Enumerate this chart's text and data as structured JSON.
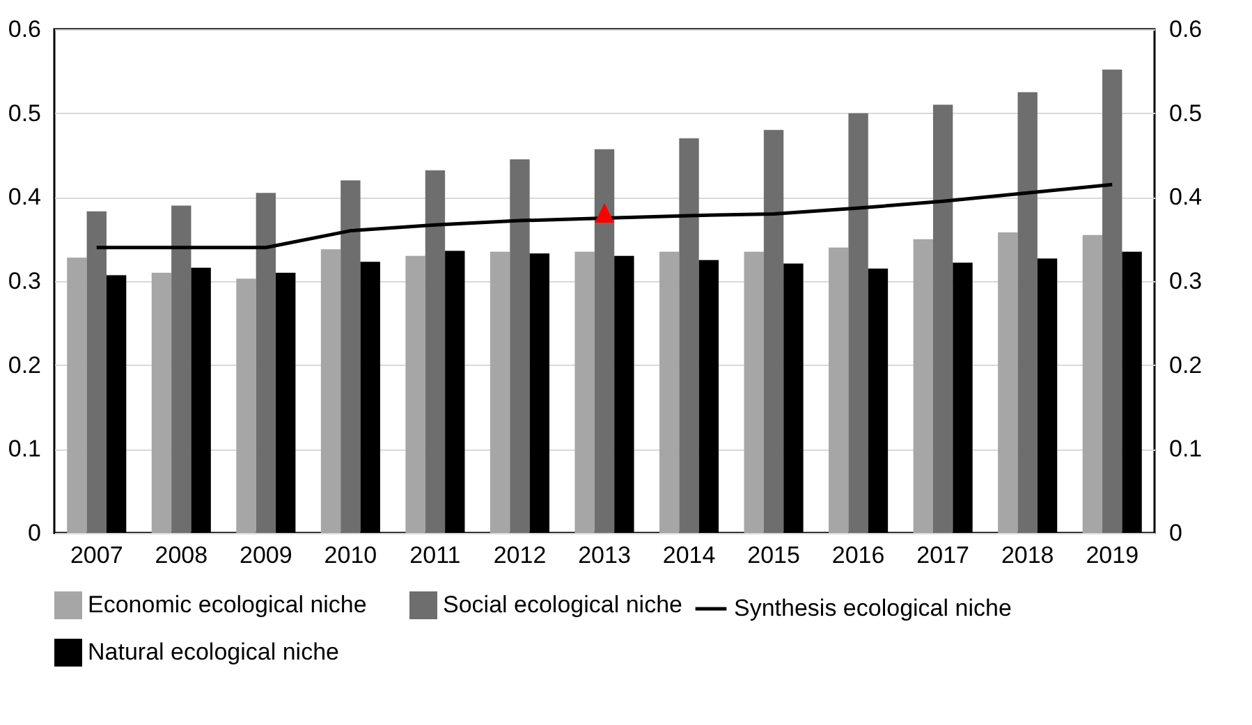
{
  "chart_data": {
    "type": "bar",
    "categories": [
      "2007",
      "2008",
      "2009",
      "2010",
      "2011",
      "2012",
      "2013",
      "2014",
      "2015",
      "2016",
      "2017",
      "2018",
      "2019"
    ],
    "series": [
      {
        "name": "Economic ecological niche",
        "color": "#a6a6a6",
        "values": [
          0.328,
          0.31,
          0.303,
          0.338,
          0.33,
          0.335,
          0.335,
          0.335,
          0.335,
          0.34,
          0.35,
          0.358,
          0.355
        ]
      },
      {
        "name": "Social ecological niche",
        "color": "#6e6e6e",
        "values": [
          0.383,
          0.39,
          0.405,
          0.42,
          0.432,
          0.445,
          0.457,
          0.47,
          0.48,
          0.5,
          0.51,
          0.525,
          0.552
        ]
      },
      {
        "name": "Natural ecological niche",
        "color": "#000000",
        "values": [
          0.307,
          0.316,
          0.31,
          0.323,
          0.336,
          0.333,
          0.33,
          0.325,
          0.321,
          0.315,
          0.322,
          0.327,
          0.335
        ]
      },
      {
        "name": "Synthesis ecological niche",
        "type": "line",
        "axis": "y2",
        "color": "#000000",
        "values": [
          0.34,
          0.34,
          0.34,
          0.36,
          0.367,
          0.372,
          0.375,
          0.378,
          0.38,
          0.387,
          0.395,
          0.405,
          0.415
        ]
      }
    ],
    "ylim": [
      0,
      0.6
    ],
    "yticks": [
      0,
      0.1,
      0.2,
      0.3,
      0.4,
      0.5,
      0.6
    ],
    "y2lim": [
      0,
      0.6
    ],
    "y2ticks": [
      0,
      0.1,
      0.2,
      0.3,
      0.4,
      0.5,
      0.6
    ],
    "annotations": [
      {
        "text": "▲",
        "x": "2013",
        "y": 0.375
      }
    ],
    "grid": "y",
    "legend": "bottom",
    "marker": "none",
    "line_style": "solid"
  }
}
